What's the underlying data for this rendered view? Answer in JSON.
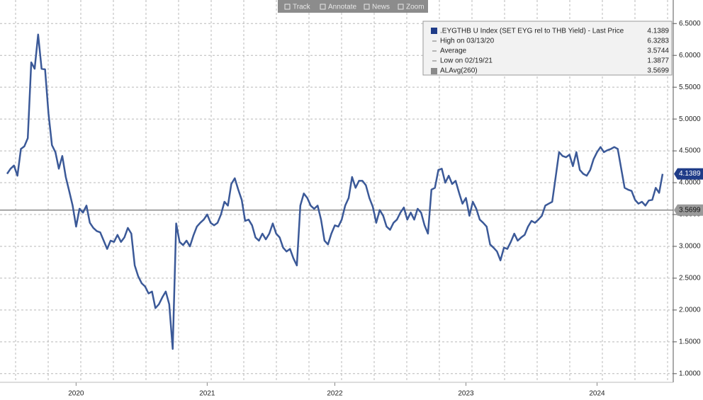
{
  "chart_data": {
    "type": "line",
    "toolbar": [
      "Track",
      "Annotate",
      "News",
      "Zoom"
    ],
    "legend_title": ".EYGTHB U Index (SET EYG rel to THB Yield) - Last Price",
    "stats": [
      {
        "label": "High on 03/13/20",
        "value": 6.3283
      },
      {
        "label": "Average",
        "value": 3.5744
      },
      {
        "label": "Low on 02/19/21",
        "value": 1.3877
      }
    ],
    "categories": [
      null,
      null,
      null,
      null,
      null,
      null,
      null,
      null,
      null,
      null,
      null,
      null,
      null,
      null,
      null,
      null,
      null,
      null,
      null,
      null,
      "2020",
      null,
      null,
      null,
      null,
      null,
      null,
      null,
      null,
      null,
      null,
      null,
      null,
      null,
      null,
      null,
      null,
      null,
      null,
      null,
      null,
      null,
      null,
      null,
      null,
      null,
      null,
      null,
      null,
      null,
      null,
      null,
      null,
      null,
      null,
      null,
      null,
      null,
      "2021",
      null,
      null,
      null,
      null,
      null,
      null,
      null,
      null,
      null,
      null,
      null,
      null,
      null,
      null,
      null,
      null,
      null,
      null,
      null,
      null,
      null,
      null,
      null,
      null,
      null,
      null,
      null,
      null,
      null,
      null,
      null,
      null,
      null,
      null,
      null,
      null,
      "2022",
      null,
      null,
      null,
      null,
      null,
      null,
      null,
      null,
      null,
      null,
      null,
      null,
      null,
      null,
      null,
      null,
      null,
      null,
      null,
      null,
      null,
      null,
      null,
      null,
      null,
      null,
      null,
      null,
      null,
      null,
      null,
      null,
      null,
      null,
      null,
      null,
      null,
      "2023",
      null,
      null,
      null,
      null,
      null,
      null,
      null,
      null,
      null,
      null,
      null,
      null,
      null,
      null,
      null,
      null,
      null,
      null,
      null,
      null,
      null,
      null,
      null,
      null,
      null,
      null,
      null,
      null,
      null,
      null,
      null,
      null,
      null,
      null,
      null,
      null,
      null,
      "2024",
      null,
      null,
      null,
      null,
      null,
      null,
      null,
      null,
      null,
      null,
      null,
      null,
      null,
      null,
      null,
      null,
      null,
      null,
      null
    ],
    "series": [
      {
        "name": "Last Price",
        "color": "#3b5998",
        "values": [
          4.14,
          4.22,
          4.27,
          4.11,
          4.53,
          4.57,
          4.7,
          5.89,
          5.79,
          6.3283,
          5.79,
          5.78,
          5.09,
          4.59,
          4.48,
          4.22,
          4.42,
          4.09,
          3.87,
          3.64,
          3.31,
          3.59,
          3.53,
          3.64,
          3.37,
          3.29,
          3.24,
          3.22,
          3.09,
          2.96,
          3.09,
          3.07,
          3.18,
          3.07,
          3.14,
          3.29,
          3.2,
          2.7,
          2.53,
          2.42,
          2.37,
          2.26,
          2.29,
          2.03,
          2.09,
          2.2,
          2.29,
          2.09,
          1.3877,
          3.36,
          3.07,
          3.02,
          3.09,
          3.0,
          3.17,
          3.31,
          3.37,
          3.42,
          3.5,
          3.37,
          3.33,
          3.37,
          3.5,
          3.7,
          3.64,
          3.98,
          4.07,
          3.89,
          3.73,
          3.4,
          3.42,
          3.33,
          3.14,
          3.09,
          3.2,
          3.11,
          3.2,
          3.36,
          3.2,
          3.14,
          2.98,
          2.92,
          2.96,
          2.81,
          2.7,
          3.64,
          3.83,
          3.76,
          3.64,
          3.59,
          3.64,
          3.42,
          3.09,
          3.03,
          3.2,
          3.33,
          3.31,
          3.42,
          3.64,
          3.76,
          4.09,
          3.92,
          4.03,
          4.03,
          3.96,
          3.76,
          3.62,
          3.37,
          3.57,
          3.48,
          3.31,
          3.26,
          3.37,
          3.42,
          3.53,
          3.61,
          3.42,
          3.53,
          3.42,
          3.59,
          3.53,
          3.33,
          3.2,
          3.89,
          3.92,
          4.2,
          4.22,
          4.0,
          4.11,
          3.98,
          4.03,
          3.84,
          3.67,
          3.76,
          3.48,
          3.7,
          3.59,
          3.42,
          3.37,
          3.31,
          3.03,
          2.98,
          2.92,
          2.78,
          2.98,
          2.96,
          3.07,
          3.2,
          3.09,
          3.14,
          3.18,
          3.31,
          3.4,
          3.37,
          3.42,
          3.48,
          3.64,
          3.67,
          3.7,
          4.09,
          4.48,
          4.42,
          4.4,
          4.44,
          4.26,
          4.48,
          4.2,
          4.14,
          4.11,
          4.2,
          4.37,
          4.48,
          4.56,
          4.48,
          4.51,
          4.53,
          4.56,
          4.53,
          4.22,
          3.92,
          3.89,
          3.87,
          3.73,
          3.67,
          3.7,
          3.64,
          3.72,
          3.73,
          3.92,
          3.84,
          4.1389
        ]
      }
    ],
    "reference_line": {
      "name": "ALAvg(260)",
      "value": 3.5699,
      "color": "#8a8a8a"
    },
    "ylim": [
      0.92,
      6.87
    ],
    "yticks": [
      {
        "value": 1,
        "label": "1.0000"
      },
      {
        "value": 1.5,
        "label": "1.5000"
      },
      {
        "value": 2,
        "label": "2.0000"
      },
      {
        "value": 2.5,
        "label": "2.5000"
      },
      {
        "value": 3,
        "label": "3.0000"
      },
      {
        "value": 3.5,
        "label": "3.5000"
      },
      {
        "value": 4,
        "label": "4.0000"
      },
      {
        "value": 4.5,
        "label": "4.5000"
      },
      {
        "value": 5,
        "label": "5.0000"
      },
      {
        "value": 5.5,
        "label": "5.5000"
      },
      {
        "value": 6,
        "label": "6.0000"
      },
      {
        "value": 6.5,
        "label": "6.5000"
      }
    ],
    "grid": true
  }
}
